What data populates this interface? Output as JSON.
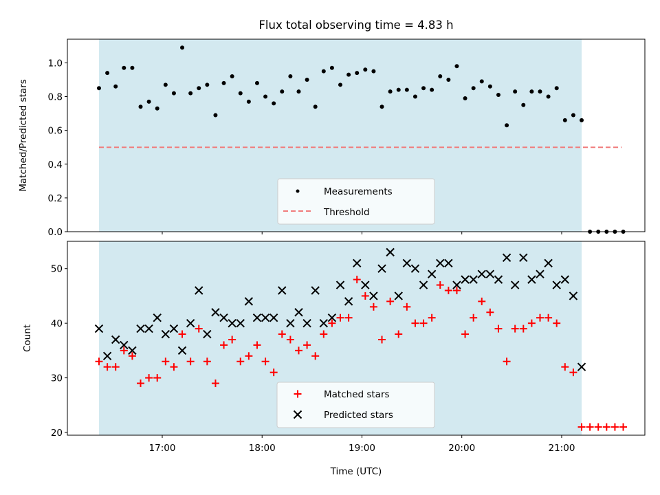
{
  "chart_data": [
    {
      "type": "scatter",
      "title": "Flux total observing time = 4.83 h",
      "ylabel": "Matched/Predicted stars",
      "xlabel": "",
      "ylim": [
        0.0,
        1.14
      ],
      "yticks": [
        "0.0",
        "0.2",
        "0.4",
        "0.6",
        "0.8",
        "1.0"
      ],
      "shaded_interval": [
        "16:22",
        "21:12"
      ],
      "shaded_color": "#d3e9f0",
      "threshold": {
        "name": "Threshold",
        "value": 0.5,
        "x_range": [
          "16:22",
          "21:36"
        ],
        "color": "#f07c7c"
      },
      "series": [
        {
          "name": "Measurements",
          "color": "#000000",
          "marker": "dot",
          "x": [
            "16:22",
            "16:27",
            "16:32",
            "16:37",
            "16:42",
            "16:47",
            "16:52",
            "16:57",
            "17:02",
            "17:07",
            "17:12",
            "17:17",
            "17:22",
            "17:27",
            "17:32",
            "17:37",
            "17:42",
            "17:47",
            "17:52",
            "17:57",
            "18:02",
            "18:07",
            "18:12",
            "18:17",
            "18:22",
            "18:27",
            "18:32",
            "18:37",
            "18:42",
            "18:47",
            "18:52",
            "18:57",
            "19:02",
            "19:07",
            "19:12",
            "19:17",
            "19:22",
            "19:27",
            "19:32",
            "19:37",
            "19:42",
            "19:47",
            "19:52",
            "19:57",
            "20:02",
            "20:07",
            "20:12",
            "20:17",
            "20:22",
            "20:27",
            "20:32",
            "20:37",
            "20:42",
            "20:47",
            "20:52",
            "20:57",
            "21:02",
            "21:07",
            "21:12",
            "21:17",
            "21:22",
            "21:27",
            "21:32",
            "21:37"
          ],
          "y": [
            0.85,
            0.94,
            0.86,
            0.97,
            0.97,
            0.74,
            0.77,
            0.73,
            0.87,
            0.82,
            1.09,
            0.82,
            0.85,
            0.87,
            0.69,
            0.88,
            0.92,
            0.82,
            0.77,
            0.88,
            0.8,
            0.76,
            0.83,
            0.92,
            0.83,
            0.9,
            0.74,
            0.95,
            0.97,
            0.87,
            0.93,
            0.94,
            0.96,
            0.95,
            0.74,
            0.83,
            0.84,
            0.84,
            0.8,
            0.85,
            0.84,
            0.92,
            0.9,
            0.98,
            0.79,
            0.85,
            0.89,
            0.86,
            0.81,
            0.63,
            0.83,
            0.75,
            0.83,
            0.83,
            0.8,
            0.85,
            0.66,
            0.69,
            0.66,
            0.0,
            0.0,
            0.0,
            0.0,
            0.0
          ]
        }
      ],
      "legend": {
        "placement": "lower center",
        "entries": [
          "Measurements",
          "Threshold"
        ]
      }
    },
    {
      "type": "scatter",
      "title": "",
      "xlabel": "Time (UTC)",
      "ylabel": "Count",
      "ylim": [
        19.5,
        55
      ],
      "yticks": [
        "20",
        "30",
        "40",
        "50"
      ],
      "xticks": [
        "17:00",
        "18:00",
        "19:00",
        "20:00",
        "21:00"
      ],
      "shaded_interval": [
        "16:22",
        "21:12"
      ],
      "shaded_color": "#d3e9f0",
      "series": [
        {
          "name": "Matched stars",
          "color": "#ff0000",
          "marker": "plus",
          "x": [
            "16:22",
            "16:27",
            "16:32",
            "16:37",
            "16:42",
            "16:47",
            "16:52",
            "16:57",
            "17:02",
            "17:07",
            "17:12",
            "17:17",
            "17:22",
            "17:27",
            "17:32",
            "17:37",
            "17:42",
            "17:47",
            "17:52",
            "17:57",
            "18:02",
            "18:07",
            "18:12",
            "18:17",
            "18:22",
            "18:27",
            "18:32",
            "18:37",
            "18:42",
            "18:47",
            "18:52",
            "18:57",
            "19:02",
            "19:07",
            "19:12",
            "19:17",
            "19:22",
            "19:27",
            "19:32",
            "19:37",
            "19:42",
            "19:47",
            "19:52",
            "19:57",
            "20:02",
            "20:07",
            "20:12",
            "20:17",
            "20:22",
            "20:27",
            "20:32",
            "20:37",
            "20:42",
            "20:47",
            "20:52",
            "20:57",
            "21:02",
            "21:07",
            "21:12",
            "21:17",
            "21:22",
            "21:27",
            "21:32",
            "21:37"
          ],
          "y": [
            33,
            32,
            32,
            35,
            34,
            29,
            30,
            30,
            33,
            32,
            38,
            33,
            39,
            33,
            29,
            36,
            37,
            33,
            34,
            36,
            33,
            31,
            38,
            37,
            35,
            36,
            34,
            38,
            40,
            41,
            41,
            48,
            45,
            43,
            37,
            44,
            38,
            43,
            40,
            40,
            41,
            47,
            46,
            46,
            38,
            41,
            44,
            42,
            39,
            33,
            39,
            39,
            40,
            41,
            41,
            40,
            32,
            31,
            21,
            21,
            21,
            21,
            21,
            21
          ]
        },
        {
          "name": "Predicted stars",
          "color": "#000000",
          "marker": "cross",
          "x": [
            "16:22",
            "16:27",
            "16:32",
            "16:37",
            "16:42",
            "16:47",
            "16:52",
            "16:57",
            "17:02",
            "17:07",
            "17:12",
            "17:17",
            "17:22",
            "17:27",
            "17:32",
            "17:37",
            "17:42",
            "17:47",
            "17:52",
            "17:57",
            "18:02",
            "18:07",
            "18:12",
            "18:17",
            "18:22",
            "18:27",
            "18:32",
            "18:37",
            "18:42",
            "18:47",
            "18:52",
            "18:57",
            "19:02",
            "19:07",
            "19:12",
            "19:17",
            "19:22",
            "19:27",
            "19:32",
            "19:37",
            "19:42",
            "19:47",
            "19:52",
            "19:57",
            "20:02",
            "20:07",
            "20:12",
            "20:17",
            "20:22",
            "20:27",
            "20:32",
            "20:37",
            "20:42",
            "20:47",
            "20:52",
            "20:57",
            "21:02",
            "21:07",
            "21:12"
          ],
          "y": [
            39,
            34,
            37,
            36,
            35,
            39,
            39,
            41,
            38,
            39,
            35,
            40,
            46,
            38,
            42,
            41,
            40,
            40,
            44,
            41,
            41,
            41,
            46,
            40,
            42,
            40,
            46,
            40,
            41,
            47,
            44,
            51,
            47,
            45,
            50,
            53,
            45,
            51,
            50,
            47,
            49,
            51,
            51,
            47,
            48,
            48,
            49,
            49,
            48,
            52,
            47,
            52,
            48,
            49,
            51,
            47,
            48,
            45,
            32
          ]
        }
      ],
      "legend": {
        "placement": "lower center",
        "entries": [
          "Matched stars",
          "Predicted stars"
        ]
      }
    }
  ]
}
